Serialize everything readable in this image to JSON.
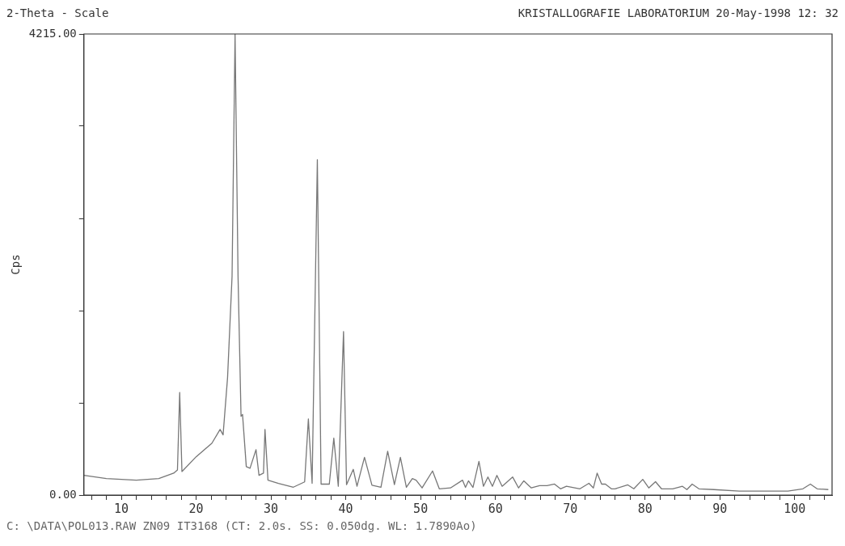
{
  "chart_data": {
    "type": "line",
    "title": "2-Theta - Scale",
    "subtitle": "KRISTALLOGRAFIE LABORATORIUM 20-May-1998 12: 32",
    "ylabel": "Cps",
    "annotations": [
      "C: \\DATA\\POL013.RAW ZN09 IT3168 (CT: 2.0s. SS: 0.050dg. WL: 1.7890Ao)"
    ],
    "xlim": [
      5,
      105
    ],
    "ylim": [
      0,
      4215
    ],
    "xticks": [
      {
        "value": 6,
        "label": null
      },
      {
        "value": 8,
        "label": null
      },
      10,
      {
        "value": 12,
        "label": null
      },
      {
        "value": 14,
        "label": null
      },
      {
        "value": 16,
        "label": null
      },
      {
        "value": 18,
        "label": null
      },
      20,
      {
        "value": 22,
        "label": null
      },
      {
        "value": 24,
        "label": null
      },
      {
        "value": 26,
        "label": null
      },
      {
        "value": 28,
        "label": null
      },
      30,
      {
        "value": 32,
        "label": null
      },
      {
        "value": 34,
        "label": null
      },
      {
        "value": 36,
        "label": null
      },
      {
        "value": 38,
        "label": null
      },
      40,
      {
        "value": 42,
        "label": null
      },
      {
        "value": 44,
        "label": null
      },
      {
        "value": 46,
        "label": null
      },
      {
        "value": 48,
        "label": null
      },
      50,
      {
        "value": 52,
        "label": null
      },
      {
        "value": 54,
        "label": null
      },
      {
        "value": 56,
        "label": null
      },
      {
        "value": 58,
        "label": null
      },
      60,
      {
        "value": 62,
        "label": null
      },
      {
        "value": 64,
        "label": null
      },
      {
        "value": 66,
        "label": null
      },
      {
        "value": 68,
        "label": null
      },
      70,
      {
        "value": 72,
        "label": null
      },
      {
        "value": 74,
        "label": null
      },
      {
        "value": 76,
        "label": null
      },
      {
        "value": 78,
        "label": null
      },
      80,
      {
        "value": 82,
        "label": null
      },
      {
        "value": 84,
        "label": null
      },
      {
        "value": 86,
        "label": null
      },
      {
        "value": 88,
        "label": null
      },
      90,
      {
        "value": 92,
        "label": null
      },
      {
        "value": 94,
        "label": null
      },
      {
        "value": 96,
        "label": null
      },
      {
        "value": 98,
        "label": null
      },
      100,
      {
        "value": 102,
        "label": null
      },
      {
        "value": 104,
        "label": null
      }
    ],
    "yticks": [
      {
        "value": 0,
        "label": "0.00"
      },
      {
        "value": 843,
        "label": null
      },
      {
        "value": 1686,
        "label": null
      },
      {
        "value": 2529,
        "label": null
      },
      {
        "value": 3372,
        "label": null
      },
      {
        "value": 4215,
        "label": "4215.00"
      }
    ],
    "grid": false,
    "legend": false,
    "marker": "none",
    "line_style": "solid",
    "series": [
      {
        "color": "#777777",
        "x": [
          5,
          8,
          12,
          15,
          17,
          17.5,
          17.8,
          18.1,
          20,
          22.1,
          23.2,
          23.6,
          24.2,
          24.8,
          25.2,
          25.6,
          26,
          26.2,
          26.7,
          27.2,
          28,
          28.4,
          29,
          29.2,
          29.6,
          31,
          33,
          34.5,
          35,
          35.5,
          36.2,
          36.7,
          37.8,
          38.4,
          39,
          39.7,
          40.1,
          41,
          41.5,
          42.5,
          43.5,
          44.7,
          45.6,
          46.5,
          47.3,
          48.1,
          48.9,
          49.4,
          50.2,
          51.6,
          52.5,
          54,
          55.6,
          56,
          56.4,
          57,
          57.8,
          58.4,
          59,
          59.6,
          60.2,
          60.9,
          62.3,
          63.1,
          63.8,
          64.8,
          65.9,
          66.9,
          67.9,
          68.7,
          69.5,
          71.3,
          72.5,
          73.1,
          73.6,
          74.2,
          74.7,
          75.5,
          76,
          77.7,
          78.5,
          79.7,
          80.5,
          81.4,
          82.2,
          83.7,
          85,
          85.6,
          86.3,
          87.2,
          89.2,
          92.6,
          95.9,
          99.1,
          101.1,
          102.1,
          103,
          104.5
        ],
        "values": [
          180,
          150,
          136,
          150,
          200,
          230,
          938,
          215,
          350,
          473,
          600,
          550,
          1075,
          2000,
          4215,
          2000,
          720,
          737,
          260,
          245,
          415,
          180,
          200,
          600,
          136,
          107,
          72,
          120,
          695,
          107,
          3065,
          100,
          100,
          520,
          80,
          1495,
          95,
          235,
          80,
          345,
          90,
          72,
          400,
          95,
          345,
          72,
          150,
          136,
          65,
          220,
          57,
          65,
          136,
          70,
          130,
          70,
          308,
          80,
          165,
          80,
          180,
          80,
          165,
          65,
          130,
          65,
          86,
          86,
          100,
          57,
          80,
          57,
          107,
          65,
          200,
          100,
          100,
          57,
          57,
          93,
          57,
          143,
          65,
          122,
          57,
          57,
          80,
          50,
          100,
          57,
          50,
          36,
          36,
          36,
          57,
          100,
          57,
          50
        ]
      }
    ]
  }
}
